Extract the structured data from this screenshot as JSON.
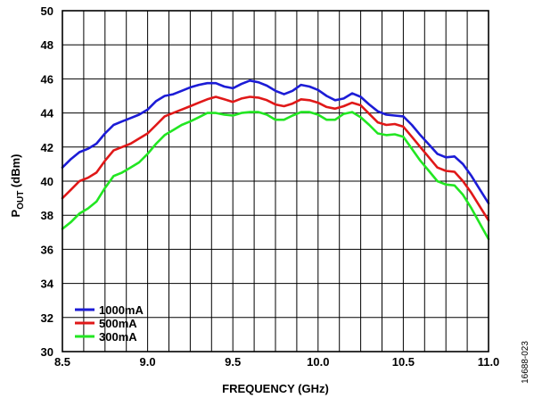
{
  "figure_id": "16688-023",
  "colors": {
    "grid": "#000000",
    "background": "#ffffff"
  },
  "chart_data": {
    "type": "line",
    "title": "",
    "xlabel": "FREQUENCY (GHz)",
    "ylabel_main": "P",
    "ylabel_sub": "OUT",
    "ylabel_unit": " (dBm)",
    "xlim": [
      8.5,
      11.0
    ],
    "ylim": [
      30,
      50
    ],
    "x_ticks": [
      8.5,
      9.0,
      9.5,
      10.0,
      10.5,
      11.0
    ],
    "x_tick_labels": [
      "8.5",
      "9.0",
      "9.5",
      "10.0",
      "10.5",
      "11.0"
    ],
    "y_ticks": [
      30,
      32,
      34,
      36,
      38,
      40,
      42,
      44,
      46,
      48,
      50
    ],
    "y_tick_labels": [
      "30",
      "32",
      "34",
      "36",
      "38",
      "40",
      "42",
      "44",
      "46",
      "48",
      "50"
    ],
    "x_minor_step": 0.125,
    "grid": true,
    "legend_position": "bottom-left",
    "series": [
      {
        "name": "1000mA",
        "color": "#1c1cd6",
        "points": [
          [
            8.5,
            40.8
          ],
          [
            8.55,
            41.3
          ],
          [
            8.6,
            41.7
          ],
          [
            8.65,
            41.9
          ],
          [
            8.7,
            42.2
          ],
          [
            8.75,
            42.8
          ],
          [
            8.8,
            43.3
          ],
          [
            8.85,
            43.5
          ],
          [
            8.9,
            43.7
          ],
          [
            8.95,
            43.9
          ],
          [
            9.0,
            44.2
          ],
          [
            9.05,
            44.7
          ],
          [
            9.1,
            45.0
          ],
          [
            9.15,
            45.1
          ],
          [
            9.2,
            45.3
          ],
          [
            9.25,
            45.5
          ],
          [
            9.3,
            45.65
          ],
          [
            9.35,
            45.75
          ],
          [
            9.4,
            45.75
          ],
          [
            9.45,
            45.55
          ],
          [
            9.5,
            45.45
          ],
          [
            9.55,
            45.7
          ],
          [
            9.6,
            45.9
          ],
          [
            9.65,
            45.8
          ],
          [
            9.7,
            45.6
          ],
          [
            9.75,
            45.3
          ],
          [
            9.8,
            45.1
          ],
          [
            9.85,
            45.3
          ],
          [
            9.9,
            45.65
          ],
          [
            9.95,
            45.55
          ],
          [
            10.0,
            45.35
          ],
          [
            10.05,
            45.0
          ],
          [
            10.1,
            44.75
          ],
          [
            10.15,
            44.85
          ],
          [
            10.2,
            45.15
          ],
          [
            10.25,
            44.95
          ],
          [
            10.3,
            44.5
          ],
          [
            10.35,
            44.1
          ],
          [
            10.4,
            43.9
          ],
          [
            10.45,
            43.85
          ],
          [
            10.5,
            43.8
          ],
          [
            10.55,
            43.3
          ],
          [
            10.6,
            42.7
          ],
          [
            10.65,
            42.15
          ],
          [
            10.7,
            41.6
          ],
          [
            10.75,
            41.4
          ],
          [
            10.8,
            41.45
          ],
          [
            10.85,
            41.0
          ],
          [
            10.9,
            40.3
          ],
          [
            10.95,
            39.5
          ],
          [
            11.0,
            38.7
          ]
        ]
      },
      {
        "name": "500mA",
        "color": "#e01818",
        "points": [
          [
            8.5,
            39.0
          ],
          [
            8.55,
            39.5
          ],
          [
            8.6,
            40.0
          ],
          [
            8.65,
            40.2
          ],
          [
            8.7,
            40.5
          ],
          [
            8.75,
            41.2
          ],
          [
            8.8,
            41.8
          ],
          [
            8.85,
            42.0
          ],
          [
            8.9,
            42.2
          ],
          [
            8.95,
            42.5
          ],
          [
            9.0,
            42.8
          ],
          [
            9.05,
            43.3
          ],
          [
            9.1,
            43.8
          ],
          [
            9.15,
            44.0
          ],
          [
            9.2,
            44.2
          ],
          [
            9.25,
            44.4
          ],
          [
            9.3,
            44.6
          ],
          [
            9.35,
            44.8
          ],
          [
            9.4,
            44.95
          ],
          [
            9.45,
            44.8
          ],
          [
            9.5,
            44.65
          ],
          [
            9.55,
            44.85
          ],
          [
            9.6,
            44.95
          ],
          [
            9.65,
            44.9
          ],
          [
            9.7,
            44.75
          ],
          [
            9.75,
            44.5
          ],
          [
            9.8,
            44.4
          ],
          [
            9.85,
            44.55
          ],
          [
            9.9,
            44.8
          ],
          [
            9.95,
            44.75
          ],
          [
            10.0,
            44.6
          ],
          [
            10.05,
            44.35
          ],
          [
            10.1,
            44.25
          ],
          [
            10.15,
            44.4
          ],
          [
            10.2,
            44.6
          ],
          [
            10.25,
            44.45
          ],
          [
            10.3,
            43.95
          ],
          [
            10.35,
            43.45
          ],
          [
            10.4,
            43.3
          ],
          [
            10.45,
            43.35
          ],
          [
            10.5,
            43.2
          ],
          [
            10.55,
            42.6
          ],
          [
            10.6,
            42.0
          ],
          [
            10.65,
            41.4
          ],
          [
            10.7,
            40.8
          ],
          [
            10.75,
            40.6
          ],
          [
            10.8,
            40.55
          ],
          [
            10.85,
            40.0
          ],
          [
            10.9,
            39.3
          ],
          [
            10.95,
            38.5
          ],
          [
            11.0,
            37.7
          ]
        ]
      },
      {
        "name": "300mA",
        "color": "#22e622",
        "points": [
          [
            8.5,
            37.2
          ],
          [
            8.55,
            37.6
          ],
          [
            8.6,
            38.1
          ],
          [
            8.65,
            38.4
          ],
          [
            8.7,
            38.8
          ],
          [
            8.75,
            39.6
          ],
          [
            8.8,
            40.3
          ],
          [
            8.85,
            40.5
          ],
          [
            8.9,
            40.8
          ],
          [
            8.95,
            41.1
          ],
          [
            9.0,
            41.6
          ],
          [
            9.05,
            42.2
          ],
          [
            9.1,
            42.7
          ],
          [
            9.15,
            43.0
          ],
          [
            9.2,
            43.3
          ],
          [
            9.25,
            43.5
          ],
          [
            9.3,
            43.75
          ],
          [
            9.35,
            44.0
          ],
          [
            9.4,
            44.0
          ],
          [
            9.45,
            43.9
          ],
          [
            9.5,
            43.85
          ],
          [
            9.55,
            44.0
          ],
          [
            9.6,
            44.05
          ],
          [
            9.65,
            44.05
          ],
          [
            9.7,
            43.9
          ],
          [
            9.75,
            43.6
          ],
          [
            9.8,
            43.6
          ],
          [
            9.85,
            43.85
          ],
          [
            9.9,
            44.05
          ],
          [
            9.95,
            44.05
          ],
          [
            10.0,
            43.9
          ],
          [
            10.05,
            43.6
          ],
          [
            10.1,
            43.6
          ],
          [
            10.15,
            43.95
          ],
          [
            10.2,
            44.05
          ],
          [
            10.25,
            43.75
          ],
          [
            10.3,
            43.3
          ],
          [
            10.35,
            42.8
          ],
          [
            10.4,
            42.7
          ],
          [
            10.45,
            42.75
          ],
          [
            10.5,
            42.6
          ],
          [
            10.55,
            41.9
          ],
          [
            10.6,
            41.2
          ],
          [
            10.65,
            40.6
          ],
          [
            10.7,
            40.0
          ],
          [
            10.75,
            39.8
          ],
          [
            10.8,
            39.75
          ],
          [
            10.85,
            39.2
          ],
          [
            10.9,
            38.4
          ],
          [
            10.95,
            37.5
          ],
          [
            11.0,
            36.6
          ]
        ]
      }
    ]
  }
}
